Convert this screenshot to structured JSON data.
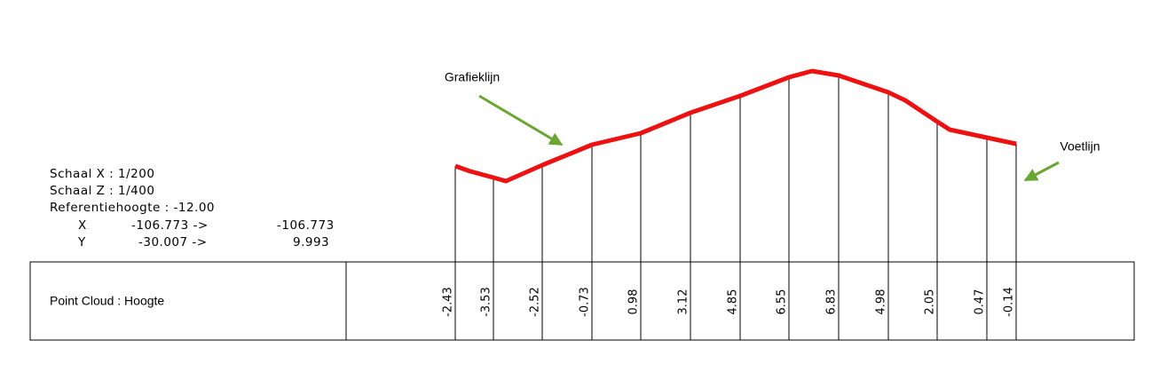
{
  "annotations": {
    "graph_line": "Grafieklijn",
    "base_line": "Voetlijn"
  },
  "info": {
    "scale_x": "Schaal X : 1/200",
    "scale_z": "Schaal Z : 1/400",
    "reference": "Referentiehoogte : -12.00",
    "x_row": {
      "label": "X",
      "from": "-106.773 ->",
      "to": "-106.773"
    },
    "y_row": {
      "label": "Y",
      "from": "-30.007 ->",
      "to": "9.993"
    }
  },
  "table": {
    "label": "Point Cloud : Hoogte",
    "heights": [
      -2.43,
      -3.53,
      -2.52,
      -0.73,
      0.98,
      3.12,
      4.85,
      6.55,
      6.83,
      4.98,
      2.05,
      0.47,
      -0.14
    ]
  }
}
